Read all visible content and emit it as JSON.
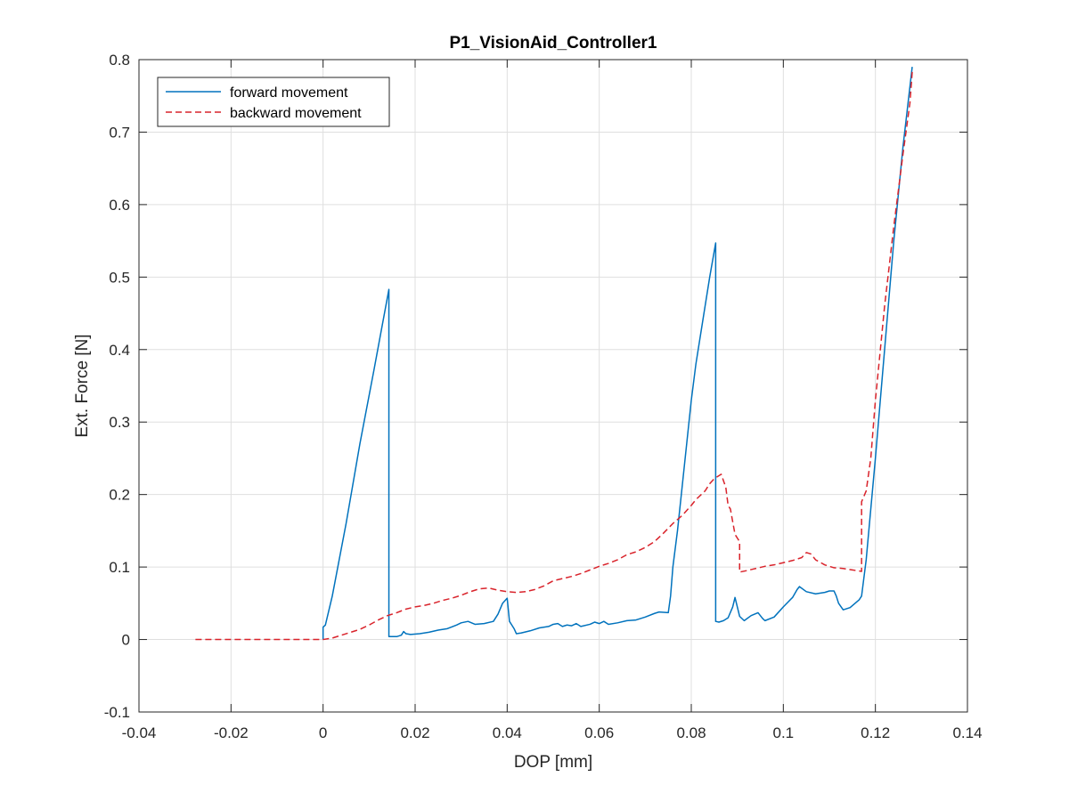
{
  "chart_data": {
    "type": "line",
    "title": "P1_VisionAid_Controller1",
    "xlabel": "DOP [mm]",
    "ylabel": "Ext. Force [N]",
    "xlim": [
      -0.04,
      0.14
    ],
    "ylim": [
      -0.1,
      0.8
    ],
    "xticks": [
      -0.04,
      -0.02,
      0,
      0.02,
      0.04,
      0.06,
      0.08,
      0.1,
      0.12,
      0.14
    ],
    "xtick_labels": [
      "-0.04",
      "-0.02",
      "0",
      "0.02",
      "0.04",
      "0.06",
      "0.08",
      "0.1",
      "0.12",
      "0.14"
    ],
    "yticks": [
      -0.1,
      0,
      0.1,
      0.2,
      0.3,
      0.4,
      0.5,
      0.6,
      0.7,
      0.8
    ],
    "ytick_labels": [
      "-0.1",
      "0",
      "0.1",
      "0.2",
      "0.3",
      "0.4",
      "0.5",
      "0.6",
      "0.7",
      "0.8"
    ],
    "grid": true,
    "legend_position": "top-left",
    "series": [
      {
        "name": "forward movement",
        "color": "#0072bd",
        "style": "solid",
        "points": [
          [
            0.0,
            0.0
          ],
          [
            0.0,
            0.017
          ],
          [
            0.0005,
            0.02
          ],
          [
            0.002,
            0.06
          ],
          [
            0.005,
            0.16
          ],
          [
            0.008,
            0.27
          ],
          [
            0.011,
            0.37
          ],
          [
            0.0143,
            0.483
          ],
          [
            0.0143,
            0.004
          ],
          [
            0.016,
            0.004
          ],
          [
            0.017,
            0.006
          ],
          [
            0.0175,
            0.011
          ],
          [
            0.018,
            0.008
          ],
          [
            0.019,
            0.007
          ],
          [
            0.021,
            0.008
          ],
          [
            0.023,
            0.01
          ],
          [
            0.025,
            0.013
          ],
          [
            0.027,
            0.015
          ],
          [
            0.029,
            0.02
          ],
          [
            0.03,
            0.023
          ],
          [
            0.0315,
            0.025
          ],
          [
            0.033,
            0.021
          ],
          [
            0.035,
            0.022
          ],
          [
            0.037,
            0.025
          ],
          [
            0.038,
            0.035
          ],
          [
            0.039,
            0.05
          ],
          [
            0.04,
            0.057
          ],
          [
            0.0405,
            0.025
          ],
          [
            0.041,
            0.02
          ],
          [
            0.0415,
            0.015
          ],
          [
            0.042,
            0.008
          ],
          [
            0.043,
            0.009
          ],
          [
            0.045,
            0.012
          ],
          [
            0.047,
            0.016
          ],
          [
            0.049,
            0.018
          ],
          [
            0.05,
            0.021
          ],
          [
            0.051,
            0.022
          ],
          [
            0.052,
            0.018
          ],
          [
            0.053,
            0.02
          ],
          [
            0.054,
            0.019
          ],
          [
            0.055,
            0.022
          ],
          [
            0.056,
            0.018
          ],
          [
            0.058,
            0.021
          ],
          [
            0.059,
            0.024
          ],
          [
            0.06,
            0.022
          ],
          [
            0.061,
            0.025
          ],
          [
            0.062,
            0.021
          ],
          [
            0.064,
            0.023
          ],
          [
            0.066,
            0.026
          ],
          [
            0.068,
            0.027
          ],
          [
            0.07,
            0.031
          ],
          [
            0.072,
            0.036
          ],
          [
            0.073,
            0.038
          ],
          [
            0.075,
            0.037
          ],
          [
            0.0755,
            0.06
          ],
          [
            0.076,
            0.1
          ],
          [
            0.077,
            0.15
          ],
          [
            0.078,
            0.21
          ],
          [
            0.079,
            0.27
          ],
          [
            0.08,
            0.33
          ],
          [
            0.081,
            0.38
          ],
          [
            0.082,
            0.42
          ],
          [
            0.083,
            0.46
          ],
          [
            0.084,
            0.5
          ],
          [
            0.0853,
            0.547
          ],
          [
            0.0853,
            0.025
          ],
          [
            0.086,
            0.024
          ],
          [
            0.087,
            0.026
          ],
          [
            0.088,
            0.03
          ],
          [
            0.089,
            0.045
          ],
          [
            0.0895,
            0.058
          ],
          [
            0.0905,
            0.032
          ],
          [
            0.0915,
            0.026
          ],
          [
            0.093,
            0.033
          ],
          [
            0.0945,
            0.037
          ],
          [
            0.0955,
            0.029
          ],
          [
            0.096,
            0.026
          ],
          [
            0.098,
            0.031
          ],
          [
            0.1,
            0.045
          ],
          [
            0.102,
            0.058
          ],
          [
            0.103,
            0.069
          ],
          [
            0.1035,
            0.073
          ],
          [
            0.105,
            0.066
          ],
          [
            0.107,
            0.063
          ],
          [
            0.109,
            0.065
          ],
          [
            0.11,
            0.067
          ],
          [
            0.111,
            0.067
          ],
          [
            0.1115,
            0.06
          ],
          [
            0.112,
            0.05
          ],
          [
            0.113,
            0.041
          ],
          [
            0.1145,
            0.044
          ],
          [
            0.1165,
            0.055
          ],
          [
            0.117,
            0.06
          ],
          [
            0.118,
            0.11
          ],
          [
            0.12,
            0.25
          ],
          [
            0.122,
            0.4
          ],
          [
            0.124,
            0.55
          ],
          [
            0.126,
            0.68
          ],
          [
            0.128,
            0.79
          ]
        ]
      },
      {
        "name": "backward movement",
        "color": "#d9232b",
        "style": "dashed",
        "points": [
          [
            0.128,
            0.783
          ],
          [
            0.1275,
            0.74
          ],
          [
            0.126,
            0.67
          ],
          [
            0.124,
            0.57
          ],
          [
            0.122,
            0.46
          ],
          [
            0.12,
            0.33
          ],
          [
            0.119,
            0.25
          ],
          [
            0.118,
            0.205
          ],
          [
            0.117,
            0.19
          ],
          [
            0.117,
            0.094
          ],
          [
            0.115,
            0.096
          ],
          [
            0.113,
            0.098
          ],
          [
            0.111,
            0.099
          ],
          [
            0.109,
            0.103
          ],
          [
            0.107,
            0.11
          ],
          [
            0.106,
            0.118
          ],
          [
            0.105,
            0.12
          ],
          [
            0.104,
            0.113
          ],
          [
            0.102,
            0.109
          ],
          [
            0.1,
            0.106
          ],
          [
            0.098,
            0.103
          ],
          [
            0.096,
            0.101
          ],
          [
            0.094,
            0.098
          ],
          [
            0.092,
            0.095
          ],
          [
            0.0905,
            0.093
          ],
          [
            0.0905,
            0.135
          ],
          [
            0.0895,
            0.145
          ],
          [
            0.0885,
            0.18
          ],
          [
            0.088,
            0.185
          ],
          [
            0.0875,
            0.21
          ],
          [
            0.0865,
            0.228
          ],
          [
            0.085,
            0.222
          ],
          [
            0.084,
            0.215
          ],
          [
            0.083,
            0.205
          ],
          [
            0.081,
            0.193
          ],
          [
            0.08,
            0.185
          ],
          [
            0.079,
            0.178
          ],
          [
            0.078,
            0.171
          ],
          [
            0.076,
            0.16
          ],
          [
            0.074,
            0.147
          ],
          [
            0.072,
            0.135
          ],
          [
            0.07,
            0.127
          ],
          [
            0.068,
            0.121
          ],
          [
            0.066,
            0.117
          ],
          [
            0.064,
            0.11
          ],
          [
            0.062,
            0.105
          ],
          [
            0.06,
            0.101
          ],
          [
            0.058,
            0.096
          ],
          [
            0.056,
            0.091
          ],
          [
            0.054,
            0.087
          ],
          [
            0.052,
            0.084
          ],
          [
            0.05,
            0.081
          ],
          [
            0.048,
            0.074
          ],
          [
            0.046,
            0.069
          ],
          [
            0.044,
            0.066
          ],
          [
            0.042,
            0.065
          ],
          [
            0.04,
            0.066
          ],
          [
            0.038,
            0.068
          ],
          [
            0.036,
            0.071
          ],
          [
            0.034,
            0.07
          ],
          [
            0.032,
            0.066
          ],
          [
            0.03,
            0.061
          ],
          [
            0.028,
            0.057
          ],
          [
            0.026,
            0.054
          ],
          [
            0.024,
            0.05
          ],
          [
            0.022,
            0.047
          ],
          [
            0.02,
            0.045
          ],
          [
            0.018,
            0.042
          ],
          [
            0.016,
            0.037
          ],
          [
            0.014,
            0.033
          ],
          [
            0.012,
            0.027
          ],
          [
            0.01,
            0.02
          ],
          [
            0.008,
            0.014
          ],
          [
            0.006,
            0.01
          ],
          [
            0.004,
            0.006
          ],
          [
            0.002,
            0.002
          ],
          [
            0.0,
            0.0
          ],
          [
            -0.01,
            0.0
          ],
          [
            -0.02,
            0.0
          ],
          [
            -0.0285,
            0.0
          ]
        ]
      }
    ]
  }
}
